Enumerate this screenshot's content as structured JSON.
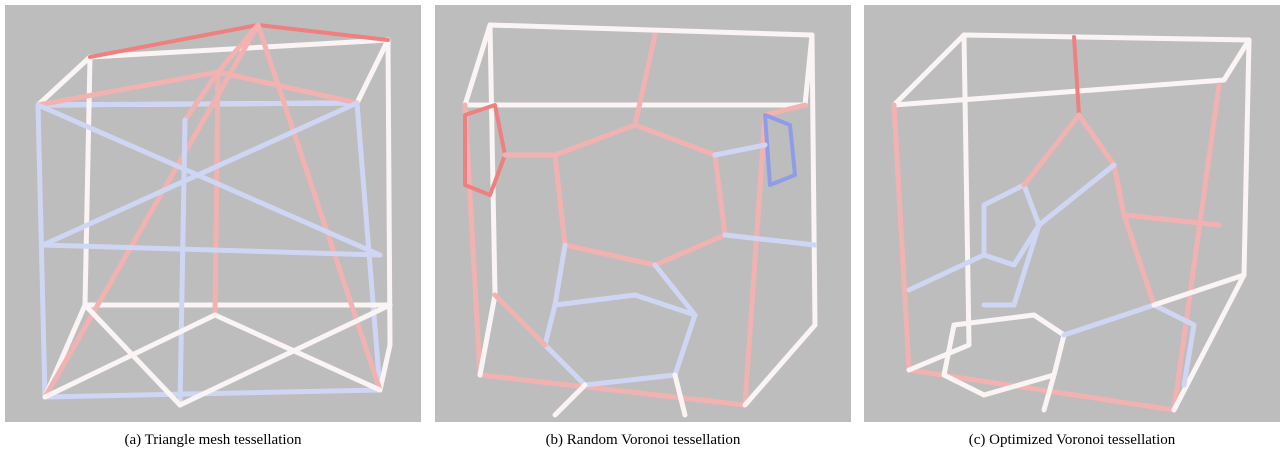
{
  "panels": [
    {
      "caption": "(a) Triangle mesh tessellation"
    },
    {
      "caption": "(b) Random Voronoi tessellation"
    },
    {
      "caption": "(c) Optimized Voronoi tessellation"
    }
  ]
}
